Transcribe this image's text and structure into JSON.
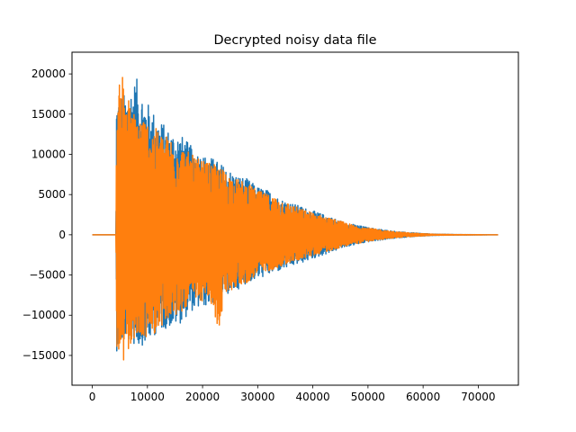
{
  "chart_data": {
    "type": "line",
    "title": "Decrypted noisy data file",
    "xlabel": "",
    "ylabel": "",
    "xlim": [
      -3680,
      77280
    ],
    "ylim": [
      -18700,
      22700
    ],
    "x_ticks": [
      0,
      10000,
      20000,
      30000,
      40000,
      50000,
      60000,
      70000
    ],
    "y_ticks": [
      -15000,
      -10000,
      -5000,
      0,
      5000,
      10000,
      15000,
      20000
    ],
    "x_tick_labels": [
      "0",
      "10000",
      "20000",
      "30000",
      "40000",
      "50000",
      "60000",
      "70000"
    ],
    "y_tick_labels": [
      "−15000",
      "−10000",
      "−5000",
      "0",
      "5000",
      "10000",
      "15000",
      "20000"
    ],
    "grid": false,
    "legend": false,
    "signal": {
      "x_start": 0,
      "x_end": 73600,
      "onset_x": 4400,
      "peak_positive": 21000,
      "peak_negative": -17000,
      "decay_to_zero_x": 62000
    },
    "series": [
      {
        "color": "#1f77b4",
        "envelope": [
          [
            0,
            0,
            0
          ],
          [
            4300,
            0,
            0
          ],
          [
            4400,
            17500,
            -14500
          ],
          [
            6000,
            17500,
            -13000
          ],
          [
            8000,
            19500,
            -14000
          ],
          [
            10000,
            16500,
            -13500
          ],
          [
            12000,
            14500,
            -12000
          ],
          [
            14000,
            13000,
            -11500
          ],
          [
            16000,
            12500,
            -11000
          ],
          [
            18000,
            11000,
            -9500
          ],
          [
            20000,
            10000,
            -9000
          ],
          [
            22000,
            9500,
            -8500
          ],
          [
            24000,
            8500,
            -7500
          ],
          [
            26000,
            7500,
            -7000
          ],
          [
            28000,
            7000,
            -6000
          ],
          [
            30000,
            6000,
            -5500
          ],
          [
            32000,
            5500,
            -5000
          ],
          [
            34000,
            4500,
            -4500
          ],
          [
            36000,
            4000,
            -4000
          ],
          [
            38000,
            3500,
            -3500
          ],
          [
            40000,
            3000,
            -3000
          ],
          [
            42000,
            2500,
            -2500
          ],
          [
            44000,
            2000,
            -2000
          ],
          [
            46000,
            1500,
            -1500
          ],
          [
            48000,
            1200,
            -1200
          ],
          [
            50000,
            900,
            -900
          ],
          [
            52000,
            700,
            -700
          ],
          [
            54000,
            500,
            -500
          ],
          [
            56000,
            350,
            -350
          ],
          [
            58000,
            250,
            -250
          ],
          [
            60000,
            150,
            -150
          ],
          [
            62000,
            80,
            -80
          ],
          [
            66000,
            30,
            -30
          ],
          [
            73600,
            0,
            0
          ]
        ]
      },
      {
        "color": "#ff7f0e",
        "envelope": [
          [
            0,
            0,
            0
          ],
          [
            4300,
            0,
            0
          ],
          [
            4400,
            17000,
            -14000
          ],
          [
            5600,
            21000,
            -17000
          ],
          [
            7000,
            15500,
            -13500
          ],
          [
            9000,
            15000,
            -13000
          ],
          [
            11000,
            13500,
            -12500
          ],
          [
            13000,
            12500,
            -11000
          ],
          [
            15000,
            12000,
            -10500
          ],
          [
            17000,
            10500,
            -9000
          ],
          [
            19000,
            9500,
            -8500
          ],
          [
            21000,
            9000,
            -8000
          ],
          [
            23000,
            8500,
            -12000
          ],
          [
            24000,
            8000,
            -7500
          ],
          [
            26000,
            7000,
            -6500
          ],
          [
            28000,
            6500,
            -6000
          ],
          [
            30000,
            5500,
            -5000
          ],
          [
            32000,
            5000,
            -4500
          ],
          [
            34000,
            4500,
            -4000
          ],
          [
            36000,
            3800,
            -3500
          ],
          [
            38000,
            3200,
            -3000
          ],
          [
            40000,
            2800,
            -2600
          ],
          [
            42000,
            2300,
            -2200
          ],
          [
            44000,
            1900,
            -1800
          ],
          [
            46000,
            1500,
            -1400
          ],
          [
            48000,
            1100,
            -1100
          ],
          [
            50000,
            850,
            -850
          ],
          [
            52000,
            650,
            -650
          ],
          [
            54000,
            450,
            -450
          ],
          [
            56000,
            320,
            -320
          ],
          [
            58000,
            220,
            -220
          ],
          [
            60000,
            140,
            -140
          ],
          [
            62000,
            70,
            -70
          ],
          [
            66000,
            25,
            -25
          ],
          [
            73600,
            0,
            0
          ]
        ]
      }
    ]
  }
}
